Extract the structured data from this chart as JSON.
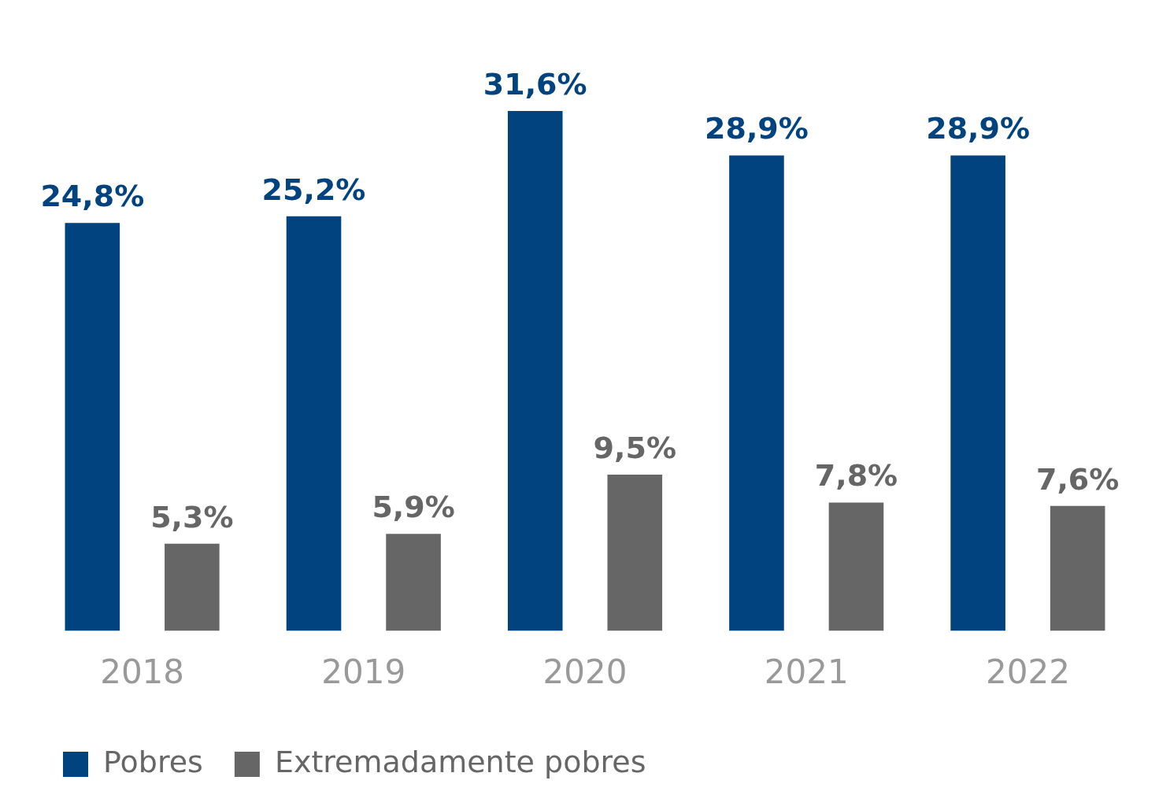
{
  "chart_data": {
    "type": "bar",
    "categories": [
      "2018",
      "2019",
      "2020",
      "2021",
      "2022"
    ],
    "series": [
      {
        "name": "Pobres",
        "color": "#00437f",
        "values": [
          24.8,
          25.2,
          31.6,
          28.9,
          28.9
        ],
        "value_labels": [
          "24,8%",
          "25,2%",
          "31,6%",
          "28,9%",
          "28,9%"
        ]
      },
      {
        "name": "Extremadamente pobres",
        "color": "#666666",
        "values": [
          5.3,
          5.9,
          9.5,
          7.8,
          7.6
        ],
        "value_labels": [
          "5,3%",
          "5,9%",
          "9,5%",
          "7,8%",
          "7,6%"
        ]
      }
    ],
    "legend": "bottom left",
    "grid": false
  }
}
